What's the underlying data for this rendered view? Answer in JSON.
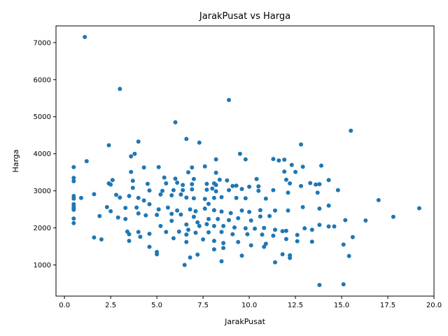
{
  "chart_data": {
    "type": "scatter",
    "title": "JarakPusat vs Harga",
    "xlabel": "JarakPusat",
    "ylabel": "Harga",
    "xlim": [
      -0.46,
      20.0
    ],
    "ylim": [
      160,
      7450
    ],
    "xticks": [
      0.0,
      2.5,
      5.0,
      7.5,
      10.0,
      12.5,
      15.0,
      17.5,
      20.0
    ],
    "xtick_labels": [
      "0.0",
      "2.5",
      "5.0",
      "7.5",
      "10.0",
      "12.5",
      "15.0",
      "17.5",
      "20.0"
    ],
    "yticks": [
      1000,
      2000,
      3000,
      4000,
      5000,
      6000,
      7000
    ],
    "ytick_labels": [
      "1000",
      "2000",
      "3000",
      "4000",
      "5000",
      "6000",
      "7000"
    ],
    "grid": false,
    "marker_color": "#1f77b4",
    "points": [
      [
        1.1,
        7150
      ],
      [
        3.0,
        5750
      ],
      [
        8.9,
        5450
      ],
      [
        6.0,
        4850
      ],
      [
        15.5,
        4620
      ],
      [
        6.6,
        4400
      ],
      [
        4.0,
        4330
      ],
      [
        7.3,
        4300
      ],
      [
        2.4,
        4230
      ],
      [
        12.8,
        4250
      ],
      [
        3.8,
        4000
      ],
      [
        9.5,
        4000
      ],
      [
        3.6,
        3930
      ],
      [
        8.2,
        3850
      ],
      [
        9.8,
        3850
      ],
      [
        11.3,
        3860
      ],
      [
        11.6,
        3820
      ],
      [
        11.9,
        3840
      ],
      [
        1.2,
        3800
      ],
      [
        12.3,
        3700
      ],
      [
        0.5,
        3640
      ],
      [
        4.3,
        3630
      ],
      [
        5.1,
        3640
      ],
      [
        6.9,
        3630
      ],
      [
        7.6,
        3660
      ],
      [
        12.9,
        3650
      ],
      [
        13.9,
        3680
      ],
      [
        3.6,
        3510
      ],
      [
        6.7,
        3500
      ],
      [
        8.2,
        3490
      ],
      [
        11.9,
        3520
      ],
      [
        12.5,
        3510
      ],
      [
        0.5,
        3350
      ],
      [
        0.5,
        3260
      ],
      [
        5.4,
        3360
      ],
      [
        6.0,
        3330
      ],
      [
        7.0,
        3320
      ],
      [
        8.4,
        3300
      ],
      [
        8.8,
        3280
      ],
      [
        10.4,
        3320
      ],
      [
        12.0,
        3300
      ],
      [
        13.3,
        3210
      ],
      [
        14.3,
        3290
      ],
      [
        2.6,
        3290
      ],
      [
        2.4,
        3200
      ],
      [
        2.5,
        3170
      ],
      [
        3.7,
        3270
      ],
      [
        4.5,
        3190
      ],
      [
        5.5,
        3200
      ],
      [
        6.1,
        3220
      ],
      [
        6.4,
        3160
      ],
      [
        6.9,
        3180
      ],
      [
        7.7,
        3190
      ],
      [
        8.1,
        3200
      ],
      [
        8.2,
        3160
      ],
      [
        9.1,
        3130
      ],
      [
        9.3,
        3140
      ],
      [
        10.0,
        3110
      ],
      [
        10.5,
        3120
      ],
      [
        12.2,
        3200
      ],
      [
        12.8,
        3130
      ],
      [
        13.6,
        3170
      ],
      [
        13.8,
        3180
      ],
      [
        3.7,
        3080
      ],
      [
        4.6,
        3010
      ],
      [
        5.3,
        3000
      ],
      [
        5.9,
        3020
      ],
      [
        6.4,
        3020
      ],
      [
        6.9,
        3040
      ],
      [
        7.7,
        3030
      ],
      [
        8.0,
        3060
      ],
      [
        8.2,
        2990
      ],
      [
        8.9,
        3020
      ],
      [
        9.6,
        3050
      ],
      [
        10.5,
        3000
      ],
      [
        11.3,
        3020
      ],
      [
        12.1,
        2950
      ],
      [
        14.8,
        3020
      ],
      [
        0.5,
        2860
      ],
      [
        0.5,
        2790
      ],
      [
        0.9,
        2810
      ],
      [
        1.6,
        2910
      ],
      [
        2.8,
        2890
      ],
      [
        3.0,
        2820
      ],
      [
        3.5,
        2860
      ],
      [
        4.0,
        2810
      ],
      [
        4.3,
        2740
      ],
      [
        5.2,
        2900
      ],
      [
        5.8,
        2880
      ],
      [
        6.3,
        2900
      ],
      [
        6.6,
        2820
      ],
      [
        7.0,
        2800
      ],
      [
        7.6,
        2780
      ],
      [
        8.1,
        2810
      ],
      [
        8.5,
        2830
      ],
      [
        9.3,
        2810
      ],
      [
        9.8,
        2800
      ],
      [
        10.9,
        2790
      ],
      [
        13.7,
        2950
      ],
      [
        14.3,
        2600
      ],
      [
        17.0,
        2750
      ],
      [
        0.5,
        2640
      ],
      [
        0.5,
        2580
      ],
      [
        0.5,
        2530
      ],
      [
        0.5,
        2490
      ],
      [
        2.3,
        2560
      ],
      [
        2.5,
        2450
      ],
      [
        3.3,
        2540
      ],
      [
        3.9,
        2550
      ],
      [
        4.6,
        2640
      ],
      [
        5.1,
        2500
      ],
      [
        5.6,
        2550
      ],
      [
        6.1,
        2470
      ],
      [
        6.8,
        2500
      ],
      [
        7.1,
        2450
      ],
      [
        7.6,
        2520
      ],
      [
        8.1,
        2480
      ],
      [
        8.5,
        2440
      ],
      [
        9.0,
        2400
      ],
      [
        9.6,
        2470
      ],
      [
        10.0,
        2430
      ],
      [
        10.6,
        2480
      ],
      [
        11.4,
        2470
      ],
      [
        12.1,
        2470
      ],
      [
        12.9,
        2560
      ],
      [
        13.8,
        2520
      ],
      [
        19.2,
        2530
      ],
      [
        1.9,
        2320
      ],
      [
        2.9,
        2280
      ],
      [
        3.3,
        2240
      ],
      [
        4.0,
        2390
      ],
      [
        4.4,
        2340
      ],
      [
        5.0,
        2350
      ],
      [
        5.8,
        2380
      ],
      [
        6.3,
        2360
      ],
      [
        7.0,
        2300
      ],
      [
        7.8,
        2240
      ],
      [
        8.3,
        2240
      ],
      [
        8.9,
        2210
      ],
      [
        9.4,
        2260
      ],
      [
        10.1,
        2200
      ],
      [
        10.6,
        2310
      ],
      [
        11.1,
        2320
      ],
      [
        15.2,
        2210
      ],
      [
        16.3,
        2200
      ],
      [
        17.8,
        2300
      ],
      [
        0.5,
        2250
      ],
      [
        0.5,
        2130
      ],
      [
        5.2,
        2050
      ],
      [
        5.8,
        2190
      ],
      [
        6.6,
        2090
      ],
      [
        7.3,
        2050
      ],
      [
        7.7,
        2100
      ],
      [
        8.1,
        2050
      ],
      [
        8.6,
        2050
      ],
      [
        9.2,
        2010
      ],
      [
        9.8,
        1990
      ],
      [
        10.3,
        1980
      ],
      [
        10.8,
        2000
      ],
      [
        11.4,
        1950
      ],
      [
        12.0,
        1920
      ],
      [
        13.0,
        1990
      ],
      [
        13.4,
        1950
      ],
      [
        13.8,
        2080
      ],
      [
        14.3,
        2040
      ],
      [
        14.6,
        2040
      ],
      [
        3.4,
        1900
      ],
      [
        3.5,
        1830
      ],
      [
        4.0,
        1890
      ],
      [
        4.6,
        1840
      ],
      [
        5.5,
        1890
      ],
      [
        6.2,
        1900
      ],
      [
        6.6,
        1820
      ],
      [
        7.1,
        1870
      ],
      [
        7.8,
        1880
      ],
      [
        8.5,
        1890
      ],
      [
        9.1,
        1830
      ],
      [
        9.9,
        1830
      ],
      [
        10.7,
        1820
      ],
      [
        11.3,
        1790
      ],
      [
        11.8,
        1910
      ],
      [
        12.6,
        1810
      ],
      [
        1.6,
        1740
      ],
      [
        2.0,
        1690
      ],
      [
        3.5,
        1650
      ],
      [
        4.1,
        1760
      ],
      [
        5.9,
        1720
      ],
      [
        6.6,
        1620
      ],
      [
        7.5,
        1690
      ],
      [
        8.1,
        1650
      ],
      [
        8.6,
        1590
      ],
      [
        9.4,
        1620
      ],
      [
        10.1,
        1530
      ],
      [
        10.9,
        1570
      ],
      [
        12.0,
        1700
      ],
      [
        12.6,
        1640
      ],
      [
        13.4,
        1630
      ],
      [
        15.1,
        1550
      ],
      [
        15.6,
        1750
      ],
      [
        4.6,
        1490
      ],
      [
        5.0,
        1350
      ],
      [
        5.0,
        1290
      ],
      [
        7.2,
        1280
      ],
      [
        8.1,
        1420
      ],
      [
        8.6,
        1460
      ],
      [
        9.6,
        1250
      ],
      [
        10.8,
        1490
      ],
      [
        11.8,
        1290
      ],
      [
        12.2,
        1260
      ],
      [
        12.2,
        1190
      ],
      [
        11.4,
        1070
      ],
      [
        8.5,
        1100
      ],
      [
        6.8,
        1200
      ],
      [
        6.5,
        1000
      ],
      [
        13.8,
        460
      ],
      [
        15.1,
        480
      ],
      [
        15.4,
        1240
      ],
      [
        6.7,
        1950
      ],
      [
        7.2,
        2150
      ],
      [
        7.8,
        2650
      ]
    ]
  }
}
